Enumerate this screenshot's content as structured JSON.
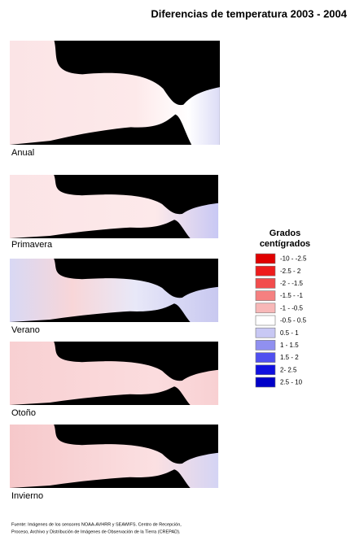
{
  "title": "Diferencias de temperatura 2003 - 2004",
  "panels": [
    "Anual",
    "Primavera",
    "Verano",
    "Otoño",
    "Invierno"
  ],
  "legend": {
    "title_lines": [
      "Grados",
      "centígrados"
    ],
    "items": [
      {
        "label": "-10 - -2.5",
        "color": "#e00000"
      },
      {
        "label": "-2.5 - 2",
        "color": "#ee1c1c"
      },
      {
        "label": "-2 - -1.5",
        "color": "#f24c4c"
      },
      {
        "label": "-1.5 - -1",
        "color": "#f58080"
      },
      {
        "label": "-1 - -0.5",
        "color": "#f8b8b8"
      },
      {
        "label": "-0.5 - 0.5",
        "color": "#ffffff"
      },
      {
        "label": "0.5 - 1",
        "color": "#c8c8f4"
      },
      {
        "label": "1 - 1.5",
        "color": "#9090f0"
      },
      {
        "label": "1.5 - 2",
        "color": "#5050f0"
      },
      {
        "label": "2- 2.5",
        "color": "#1010e0"
      },
      {
        "label": "2.5 - 10",
        "color": "#0000c8"
      }
    ]
  },
  "source_lines": [
    "Fuente: Imágenes de los sensores NOAA-AVHRR y SEAWIFS. Centro de Recepción,",
    "Proceso, Archivo y Distribución de Imágenes de Observación de la Tierra (CREPAD)."
  ]
}
